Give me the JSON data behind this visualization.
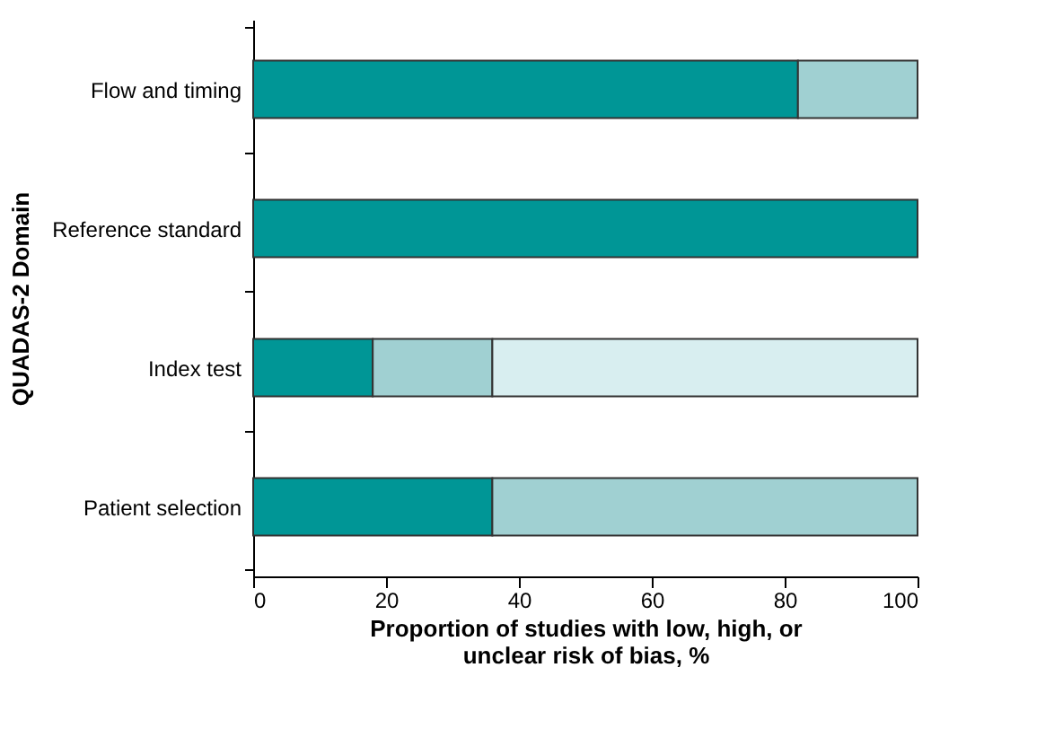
{
  "chart_data": {
    "type": "bar",
    "orientation": "horizontal",
    "stacked": true,
    "categories": [
      "Flow and timing",
      "Reference standard",
      "Index test",
      "Patient selection"
    ],
    "series": [
      {
        "color": "#009696",
        "values": [
          82,
          100,
          18,
          36
        ]
      },
      {
        "color": "#a0d0d2",
        "values": [
          18,
          0,
          18,
          64
        ]
      },
      {
        "color": "#d8eef0",
        "values": [
          0,
          0,
          64,
          0
        ]
      }
    ],
    "xlim": [
      0,
      100
    ],
    "xticks": [
      0,
      20,
      40,
      60,
      80,
      100
    ],
    "grid": false,
    "xlabel": "Proportion of studies with low, high, or unclear risk of bias, %",
    "ylabel": "QUADAS-2 Domain"
  }
}
